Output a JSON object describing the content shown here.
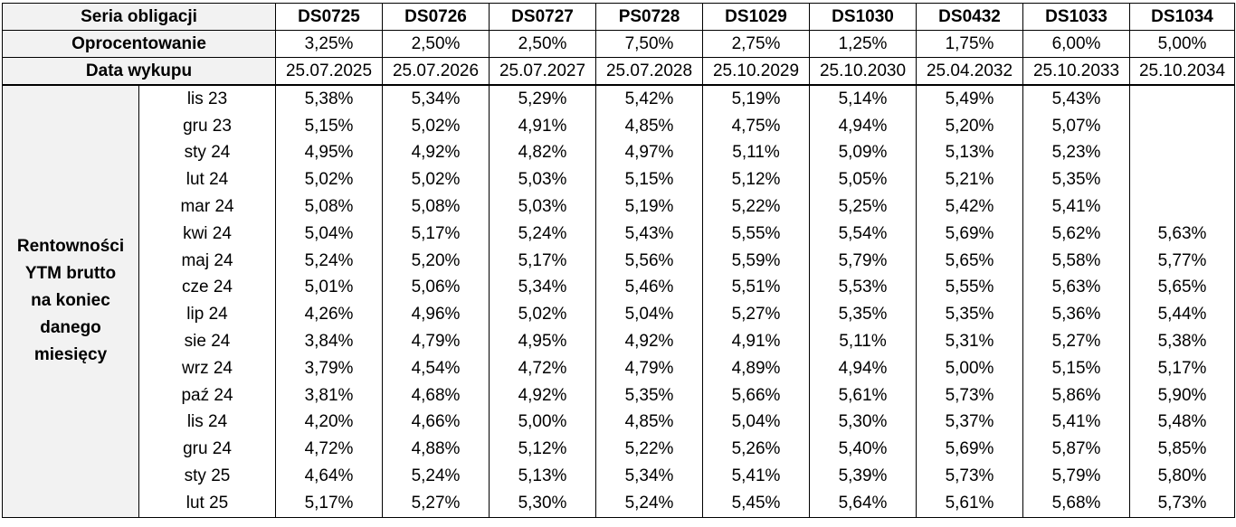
{
  "header": {
    "series_label": "Seria obligacji",
    "rate_label": "Oprocentowanie",
    "date_label": "Data wykupu",
    "series": [
      "DS0725",
      "DS0726",
      "DS0727",
      "PS0728",
      "DS1029",
      "DS1030",
      "DS0432",
      "DS1033",
      "DS1034"
    ],
    "rates": [
      "3,25%",
      "2,50%",
      "2,50%",
      "7,50%",
      "2,75%",
      "1,25%",
      "1,75%",
      "6,00%",
      "5,00%"
    ],
    "dates": [
      "25.07.2025",
      "25.07.2026",
      "25.07.2027",
      "25.07.2028",
      "25.10.2029",
      "25.10.2030",
      "25.04.2032",
      "25.10.2033",
      "25.10.2034"
    ]
  },
  "side_label_lines": [
    "Rentowności",
    "YTM brutto",
    "na koniec",
    "danego",
    "miesięcy"
  ],
  "rows": [
    {
      "month": "lis 23",
      "values": [
        "5,38%",
        "5,34%",
        "5,29%",
        "5,42%",
        "5,19%",
        "5,14%",
        "5,49%",
        "5,43%",
        ""
      ]
    },
    {
      "month": "gru 23",
      "values": [
        "5,15%",
        "5,02%",
        "4,91%",
        "4,85%",
        "4,75%",
        "4,94%",
        "5,20%",
        "5,07%",
        ""
      ]
    },
    {
      "month": "sty 24",
      "values": [
        "4,95%",
        "4,92%",
        "4,82%",
        "4,97%",
        "5,11%",
        "5,09%",
        "5,13%",
        "5,23%",
        ""
      ]
    },
    {
      "month": "lut 24",
      "values": [
        "5,02%",
        "5,02%",
        "5,03%",
        "5,15%",
        "5,12%",
        "5,05%",
        "5,21%",
        "5,35%",
        ""
      ]
    },
    {
      "month": "mar 24",
      "values": [
        "5,08%",
        "5,08%",
        "5,03%",
        "5,19%",
        "5,22%",
        "5,25%",
        "5,42%",
        "5,41%",
        ""
      ]
    },
    {
      "month": "kwi 24",
      "values": [
        "5,04%",
        "5,17%",
        "5,24%",
        "5,43%",
        "5,55%",
        "5,54%",
        "5,69%",
        "5,62%",
        "5,63%"
      ]
    },
    {
      "month": "maj 24",
      "values": [
        "5,24%",
        "5,20%",
        "5,17%",
        "5,56%",
        "5,59%",
        "5,79%",
        "5,65%",
        "5,58%",
        "5,77%"
      ]
    },
    {
      "month": "cze 24",
      "values": [
        "5,01%",
        "5,06%",
        "5,34%",
        "5,46%",
        "5,51%",
        "5,53%",
        "5,55%",
        "5,63%",
        "5,65%"
      ]
    },
    {
      "month": "lip 24",
      "values": [
        "4,26%",
        "4,96%",
        "5,02%",
        "5,04%",
        "5,27%",
        "5,35%",
        "5,35%",
        "5,36%",
        "5,44%"
      ]
    },
    {
      "month": "sie 24",
      "values": [
        "3,84%",
        "4,79%",
        "4,95%",
        "4,92%",
        "4,91%",
        "5,11%",
        "5,31%",
        "5,27%",
        "5,38%"
      ]
    },
    {
      "month": "wrz 24",
      "values": [
        "3,79%",
        "4,54%",
        "4,72%",
        "4,79%",
        "4,89%",
        "4,94%",
        "5,00%",
        "5,15%",
        "5,17%"
      ]
    },
    {
      "month": "paź 24",
      "values": [
        "3,81%",
        "4,68%",
        "4,92%",
        "5,35%",
        "5,66%",
        "5,61%",
        "5,73%",
        "5,86%",
        "5,90%"
      ]
    },
    {
      "month": "lis 24",
      "values": [
        "4,20%",
        "4,66%",
        "5,00%",
        "4,85%",
        "5,04%",
        "5,30%",
        "5,37%",
        "5,41%",
        "5,48%"
      ]
    },
    {
      "month": "gru 24",
      "values": [
        "4,72%",
        "4,88%",
        "5,12%",
        "5,22%",
        "5,26%",
        "5,40%",
        "5,69%",
        "5,87%",
        "5,85%"
      ]
    },
    {
      "month": "sty 25",
      "values": [
        "4,64%",
        "5,24%",
        "5,13%",
        "5,34%",
        "5,41%",
        "5,39%",
        "5,73%",
        "5,79%",
        "5,80%"
      ]
    },
    {
      "month": "lut 25",
      "values": [
        "5,17%",
        "5,27%",
        "5,30%",
        "5,24%",
        "5,45%",
        "5,64%",
        "5,61%",
        "5,68%",
        "5,73%"
      ]
    }
  ]
}
